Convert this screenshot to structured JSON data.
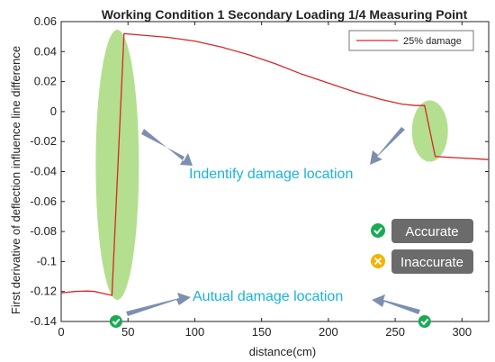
{
  "chart_data": {
    "type": "line",
    "title": "Working Condition 1 Secondary Loading 1/4 Measuring Point",
    "xlabel": "distance(cm)",
    "ylabel": "First derivative of deflection influence line difference",
    "xlim": [
      0,
      320
    ],
    "ylim": [
      -0.14,
      0.06
    ],
    "xticks": [
      0,
      50,
      100,
      150,
      200,
      250,
      300
    ],
    "yticks": [
      0.06,
      0.04,
      0.02,
      0,
      -0.02,
      -0.04,
      -0.06,
      -0.08,
      -0.1,
      -0.12,
      -0.14
    ],
    "xtick_labels": [
      "0",
      "50",
      "100",
      "150",
      "200",
      "250",
      "300"
    ],
    "ytick_labels": [
      "0.06",
      "0.04",
      "0.02",
      "0",
      "-0.02",
      "-0.04",
      "-0.06",
      "-0.08",
      "-0.1",
      "-0.12",
      "-0.14"
    ],
    "grid": false,
    "legend_position": "top-right",
    "series": [
      {
        "name": "25% damage",
        "color": "#d62728",
        "x": [
          0,
          5,
          10,
          15,
          20,
          25,
          30,
          35,
          38,
          47,
          60,
          80,
          100,
          120,
          140,
          160,
          180,
          200,
          220,
          240,
          255,
          265,
          270,
          272,
          280,
          290,
          300,
          310,
          320
        ],
        "y": [
          -0.121,
          -0.1205,
          -0.12,
          -0.1198,
          -0.1197,
          -0.12,
          -0.121,
          -0.122,
          -0.1225,
          0.052,
          0.051,
          0.0495,
          0.047,
          0.043,
          0.038,
          0.032,
          0.025,
          0.019,
          0.013,
          0.008,
          0.005,
          0.004,
          0.004,
          0.004,
          -0.03,
          -0.0305,
          -0.031,
          -0.0315,
          -0.032
        ]
      }
    ]
  },
  "annotations": {
    "identify_label": "Indentify damage location",
    "actual_label": "Autual damage location",
    "accurate_label": "Accurate",
    "inaccurate_label": "Inaccurate",
    "accurate_color": "#1aaa55",
    "inaccurate_color": "#f0b400",
    "highlight_color": "#9ad46a",
    "arrow_color": "#7c8fb0"
  }
}
